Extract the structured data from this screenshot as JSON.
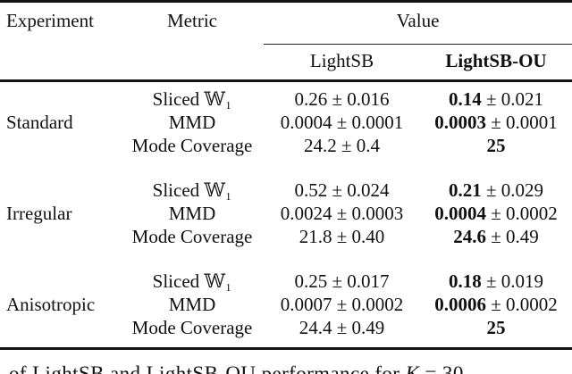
{
  "table": {
    "headers": {
      "experiment": "Experiment",
      "metric": "Metric",
      "value": "Value",
      "lightsb": "LightSB",
      "lightsb_ou": "LightSB-OU"
    },
    "blocks": [
      {
        "experiment": "Standard",
        "rows": [
          {
            "metric": "Sliced 𝕎₁",
            "lightsb": "0.26 ± 0.016",
            "ou_mean": "0.14",
            "ou_err": " ± 0.021"
          },
          {
            "metric": "MMD",
            "lightsb": "0.0004 ± 0.0001",
            "ou_mean": "0.0003",
            "ou_err": " ± 0.0001"
          },
          {
            "metric": "Mode Coverage",
            "lightsb": "24.2 ± 0.4",
            "ou_mean": "25",
            "ou_err": ""
          }
        ]
      },
      {
        "experiment": "Irregular",
        "rows": [
          {
            "metric": "Sliced 𝕎₁",
            "lightsb": "0.52 ± 0.024",
            "ou_mean": "0.21",
            "ou_err": " ± 0.029"
          },
          {
            "metric": "MMD",
            "lightsb": "0.0024 ± 0.0003",
            "ou_mean": "0.0004",
            "ou_err": " ± 0.0002"
          },
          {
            "metric": "Mode Coverage",
            "lightsb": "21.8 ± 0.40",
            "ou_mean": "24.6",
            "ou_err": " ± 0.49"
          }
        ]
      },
      {
        "experiment": "Anisotropic",
        "rows": [
          {
            "metric": "Sliced 𝕎₁",
            "lightsb": "0.25 ± 0.017",
            "ou_mean": "0.18",
            "ou_err": " ± 0.019"
          },
          {
            "metric": "MMD",
            "lightsb": "0.0007 ± 0.0002",
            "ou_mean": "0.0006",
            "ou_err": " ± 0.0002"
          },
          {
            "metric": "Mode Coverage",
            "lightsb": "24.4 ± 0.49",
            "ou_mean": "25",
            "ou_err": ""
          }
        ]
      }
    ]
  },
  "caption": {
    "pre": "of LightSB and LightSB-OU performance for ",
    "var": "K",
    "post": " = 30"
  },
  "colors": {
    "text": "#111111",
    "background": "#ffffff",
    "rule": "#141414"
  }
}
